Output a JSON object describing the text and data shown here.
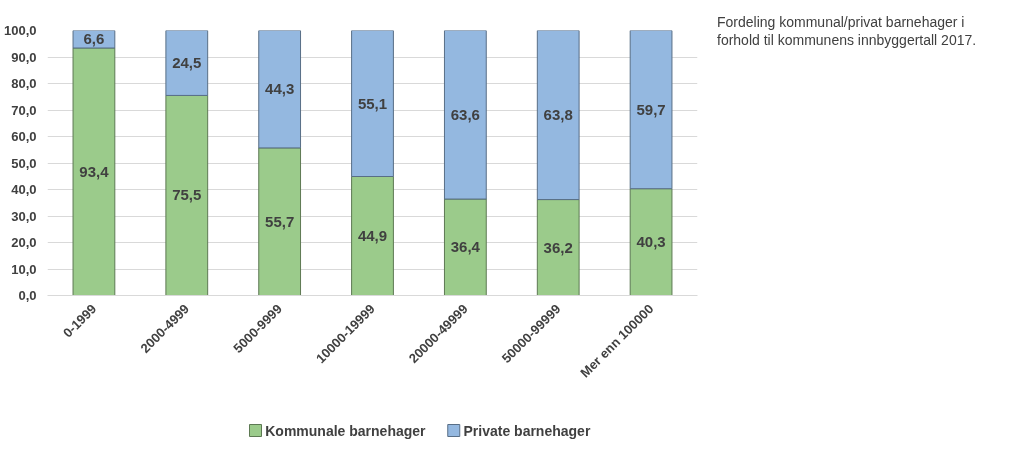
{
  "chart_data": {
    "type": "bar",
    "title": "Fordeling kommunal/privat barnehager i forhold til kommunens innbyggertall 2017.",
    "stacked": true,
    "categories": [
      "0-1999",
      "2000-4999",
      "5000-9999",
      "10000-19999",
      "20000-49999",
      "50000-99999",
      "Mer enn 100000"
    ],
    "series": [
      {
        "name": "Kommunale barnehager",
        "color": "#9bcb8b",
        "values": [
          93.4,
          75.5,
          55.7,
          44.9,
          36.4,
          36.2,
          40.3
        ],
        "value_labels": [
          "93,4",
          "75,5",
          "55,7",
          "44,9",
          "36,4",
          "36,2",
          "40,3"
        ]
      },
      {
        "name": "Private barnehager",
        "color": "#94b8e0",
        "values": [
          6.6,
          24.5,
          44.3,
          55.1,
          63.6,
          63.8,
          59.7
        ],
        "value_labels": [
          "6,6",
          "24,5",
          "44,3",
          "55,1",
          "63,6",
          "63,8",
          "59,7"
        ]
      }
    ],
    "ylim": [
      0,
      100
    ],
    "yticks": [
      {
        "value": 0,
        "label": "0,0"
      },
      {
        "value": 10,
        "label": "10,0"
      },
      {
        "value": 20,
        "label": "20,0"
      },
      {
        "value": 30,
        "label": "30,0"
      },
      {
        "value": 40,
        "label": "40,0"
      },
      {
        "value": 50,
        "label": "50,0"
      },
      {
        "value": 60,
        "label": "60,0"
      },
      {
        "value": 70,
        "label": "70,0"
      },
      {
        "value": 80,
        "label": "80,0"
      },
      {
        "value": 90,
        "label": "90,0"
      },
      {
        "value": 100,
        "label": "100,0"
      }
    ],
    "grid": "y",
    "legend": "bottom"
  }
}
